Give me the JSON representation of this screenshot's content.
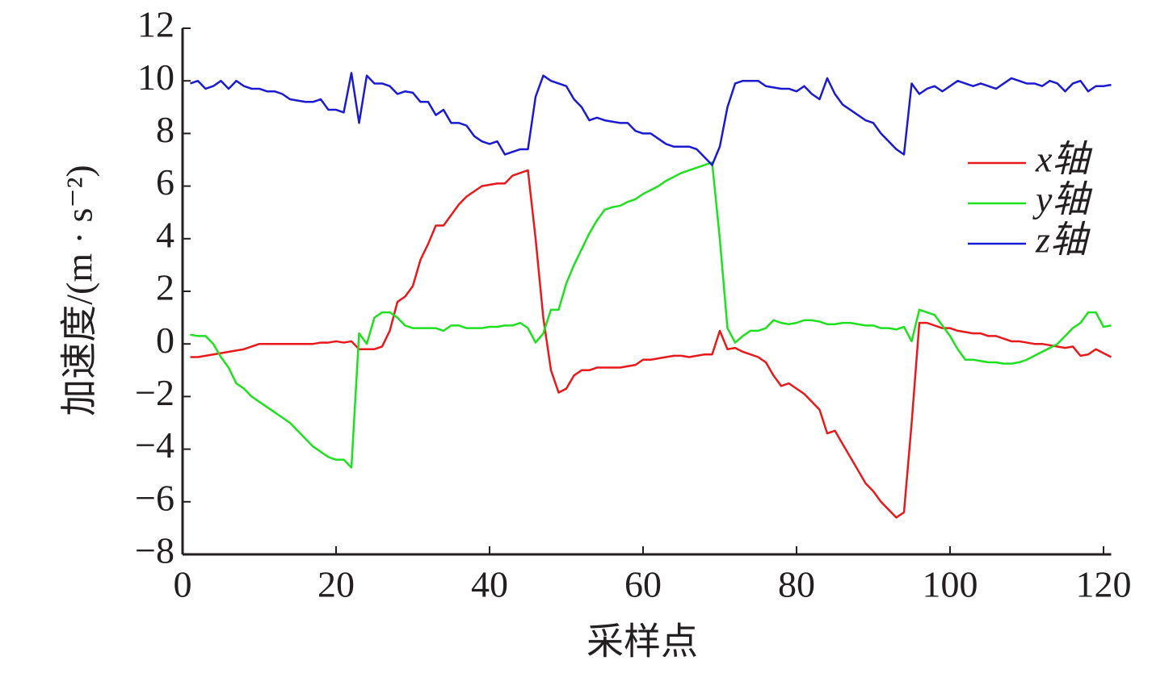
{
  "chart_data": {
    "type": "line",
    "x_label": "采样点",
    "y_label": "加速度/(m · s⁻²)",
    "xlim": [
      0,
      121
    ],
    "ylim": [
      -8,
      12
    ],
    "xticks": [
      0,
      20,
      40,
      60,
      80,
      100,
      120
    ],
    "yticks": [
      {
        "value": -8,
        "label": "−8"
      },
      {
        "value": -6,
        "label": "−6"
      },
      {
        "value": -4,
        "label": "−4"
      },
      {
        "value": -2,
        "label": "−2"
      },
      0,
      2,
      4,
      6,
      8,
      10,
      12
    ],
    "legend_position": "upper right",
    "x": [
      1,
      2,
      3,
      4,
      5,
      6,
      7,
      8,
      9,
      10,
      11,
      12,
      13,
      14,
      15,
      16,
      17,
      18,
      19,
      20,
      21,
      22,
      23,
      24,
      25,
      26,
      27,
      28,
      29,
      30,
      31,
      32,
      33,
      34,
      35,
      36,
      37,
      38,
      39,
      40,
      41,
      42,
      43,
      44,
      45,
      46,
      47,
      48,
      49,
      50,
      51,
      52,
      53,
      54,
      55,
      56,
      57,
      58,
      59,
      60,
      61,
      62,
      63,
      64,
      65,
      66,
      67,
      68,
      69,
      70,
      71,
      72,
      73,
      74,
      75,
      76,
      77,
      78,
      79,
      80,
      81,
      82,
      83,
      84,
      85,
      86,
      87,
      88,
      89,
      90,
      91,
      92,
      93,
      94,
      95,
      96,
      97,
      98,
      99,
      100,
      101,
      102,
      103,
      104,
      105,
      106,
      107,
      108,
      109,
      110,
      111,
      112,
      113,
      114,
      115,
      116,
      117,
      118,
      119,
      120,
      121
    ],
    "series": [
      {
        "name": "x轴",
        "color": "#e8191b",
        "values": [
          -0.5,
          -0.5,
          -0.45,
          -0.4,
          -0.35,
          -0.3,
          -0.25,
          -0.2,
          -0.1,
          0,
          0,
          0,
          0,
          0,
          0,
          0,
          0,
          0.05,
          0.05,
          0.1,
          0.05,
          0.1,
          -0.2,
          -0.2,
          -0.2,
          -0.1,
          0.5,
          1.6,
          1.8,
          2.2,
          3.2,
          3.8,
          4.5,
          4.5,
          4.9,
          5.3,
          5.6,
          5.8,
          6.0,
          6.05,
          6.1,
          6.1,
          6.4,
          6.5,
          6.6,
          4.0,
          1.0,
          -1.0,
          -1.85,
          -1.7,
          -1.2,
          -1.0,
          -1.0,
          -0.9,
          -0.9,
          -0.9,
          -0.9,
          -0.85,
          -0.8,
          -0.6,
          -0.6,
          -0.55,
          -0.5,
          -0.45,
          -0.45,
          -0.5,
          -0.45,
          -0.4,
          -0.4,
          0.5,
          -0.2,
          -0.15,
          -0.3,
          -0.4,
          -0.5,
          -0.7,
          -1.2,
          -1.6,
          -1.5,
          -1.7,
          -1.9,
          -2.2,
          -2.5,
          -3.4,
          -3.3,
          -3.8,
          -4.3,
          -4.8,
          -5.3,
          -5.6,
          -6.0,
          -6.3,
          -6.6,
          -6.4,
          -3,
          0.8,
          0.8,
          0.7,
          0.6,
          0.6,
          0.5,
          0.45,
          0.4,
          0.4,
          0.3,
          0.3,
          0.2,
          0.1,
          0.1,
          0.05,
          0,
          0,
          -0.05,
          -0.1,
          -0.15,
          -0.1,
          -0.45,
          -0.4,
          -0.2,
          -0.35,
          -0.5
        ]
      },
      {
        "name": "y轴",
        "color": "#1ee01e",
        "values": [
          0.35,
          0.3,
          0.3,
          0,
          -0.5,
          -0.9,
          -1.5,
          -1.7,
          -2.0,
          -2.2,
          -2.4,
          -2.6,
          -2.8,
          -3.0,
          -3.3,
          -3.6,
          -3.9,
          -4.1,
          -4.3,
          -4.4,
          -4.4,
          -4.7,
          0.4,
          0,
          1.0,
          1.2,
          1.2,
          1.0,
          0.7,
          0.6,
          0.6,
          0.6,
          0.6,
          0.5,
          0.7,
          0.7,
          0.6,
          0.6,
          0.6,
          0.65,
          0.65,
          0.7,
          0.7,
          0.8,
          0.6,
          0.05,
          0.4,
          1.3,
          1.3,
          2.3,
          3.0,
          3.6,
          4.2,
          4.7,
          5.1,
          5.2,
          5.25,
          5.4,
          5.5,
          5.7,
          5.85,
          6.0,
          6.2,
          6.35,
          6.5,
          6.6,
          6.7,
          6.8,
          6.9,
          4.0,
          0.6,
          0.05,
          0.3,
          0.5,
          0.5,
          0.6,
          0.9,
          0.8,
          0.75,
          0.8,
          0.9,
          0.9,
          0.85,
          0.75,
          0.75,
          0.8,
          0.8,
          0.75,
          0.7,
          0.7,
          0.6,
          0.6,
          0.55,
          0.65,
          0.1,
          1.3,
          1.2,
          1.1,
          0.7,
          0.3,
          -0.2,
          -0.6,
          -0.6,
          -0.65,
          -0.7,
          -0.7,
          -0.75,
          -0.75,
          -0.7,
          -0.6,
          -0.45,
          -0.3,
          -0.15,
          0,
          0.3,
          0.6,
          0.8,
          1.2,
          1.2,
          0.65,
          0.7
        ]
      },
      {
        "name": "z轴",
        "color": "#1a1ad0",
        "values": [
          9.9,
          10.0,
          9.7,
          9.8,
          10.0,
          9.7,
          10.0,
          9.8,
          9.7,
          9.7,
          9.6,
          9.6,
          9.5,
          9.3,
          9.25,
          9.2,
          9.2,
          9.3,
          8.9,
          8.9,
          8.8,
          10.3,
          8.4,
          10.2,
          9.9,
          9.9,
          9.8,
          9.5,
          9.6,
          9.55,
          9.2,
          9.2,
          8.7,
          8.9,
          8.4,
          8.4,
          8.3,
          7.9,
          7.7,
          7.6,
          7.7,
          7.2,
          7.3,
          7.4,
          7.4,
          9.4,
          10.2,
          10.0,
          9.9,
          9.8,
          9.3,
          9.0,
          8.5,
          8.6,
          8.5,
          8.45,
          8.4,
          8.4,
          8.1,
          8.0,
          8.0,
          7.8,
          7.6,
          7.5,
          7.5,
          7.5,
          7.4,
          7.1,
          6.8,
          7.5,
          9.0,
          9.9,
          10.0,
          10.0,
          10.0,
          9.8,
          9.75,
          9.7,
          9.7,
          9.6,
          9.8,
          9.5,
          9.3,
          10.1,
          9.5,
          9.1,
          8.9,
          8.7,
          8.5,
          8.4,
          8.0,
          7.7,
          7.4,
          7.2,
          9.9,
          9.5,
          9.7,
          9.8,
          9.6,
          9.8,
          10.0,
          9.9,
          9.8,
          9.9,
          9.8,
          9.7,
          9.9,
          10.1,
          10.0,
          9.9,
          9.9,
          9.8,
          10.0,
          9.9,
          9.6,
          9.9,
          10.0,
          9.6,
          9.8,
          9.8,
          9.85
        ]
      }
    ]
  }
}
